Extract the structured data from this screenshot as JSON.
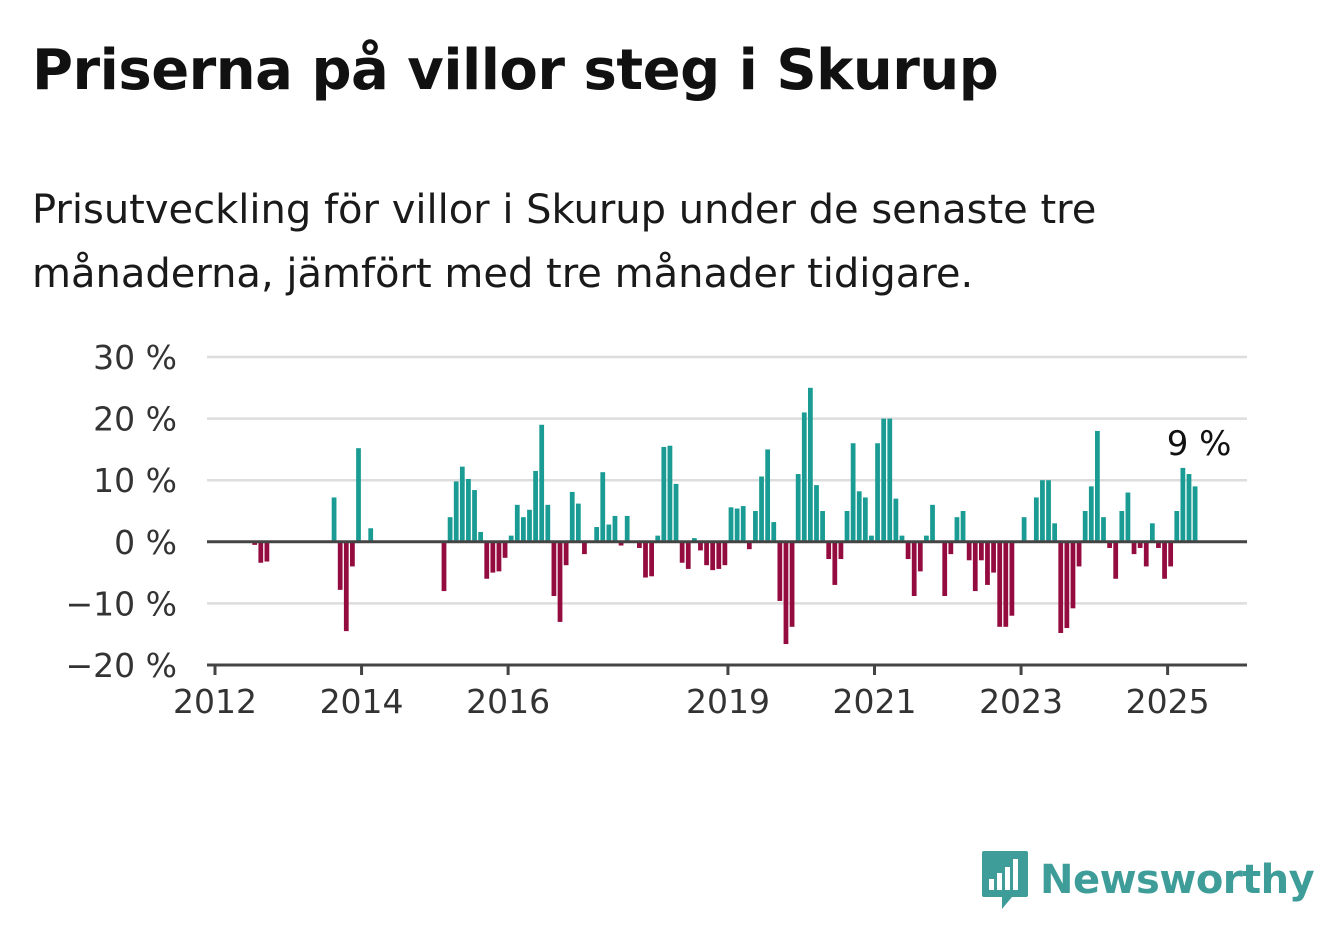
{
  "header": {
    "title": "Priserna på villor steg i Skurup",
    "subtitle": "Prisutveckling för villor i Skurup under de senaste tre månaderna, jämfört med tre månader tidigare."
  },
  "brand": {
    "name": "Newsworthy",
    "icon": "newsworthy-logo-icon"
  },
  "colors": {
    "positive": "#1a9c94",
    "negative": "#930b3f",
    "grid": "#dddddd",
    "axis": "#444444",
    "brand": "#3e9d98"
  },
  "chart_data": {
    "type": "bar",
    "title": "",
    "xlabel": "",
    "ylabel": "",
    "ylim": [
      -20,
      30
    ],
    "yticks": [
      {
        "value": 30,
        "label": "30 %"
      },
      {
        "value": 20,
        "label": "20 %"
      },
      {
        "value": 10,
        "label": "10 %"
      },
      {
        "value": 0,
        "label": "0 %"
      },
      {
        "value": -10,
        "label": "−10 %"
      },
      {
        "value": -20,
        "label": "−20 %"
      }
    ],
    "xticks": [
      {
        "value": "2012-01",
        "label": "2012"
      },
      {
        "value": "2014-01",
        "label": "2014"
      },
      {
        "value": "2016-01",
        "label": "2016"
      },
      {
        "value": "2019-01",
        "label": "2019"
      },
      {
        "value": "2021-01",
        "label": "2021"
      },
      {
        "value": "2023-01",
        "label": "2023"
      },
      {
        "value": "2025-01",
        "label": "2025"
      }
    ],
    "xlim": [
      "2012-01",
      "2026-02"
    ],
    "grid": true,
    "annotation": {
      "x": "2025-05",
      "y": 9,
      "label": "9 %"
    },
    "series": [
      {
        "values": [
          [
            "2012-07",
            -0.5
          ],
          [
            "2012-08",
            -3.4
          ],
          [
            "2012-09",
            -3.2
          ],
          [
            "2013-08",
            7.2
          ],
          [
            "2013-09",
            -7.8
          ],
          [
            "2013-10",
            -14.5
          ],
          [
            "2013-11",
            -4
          ],
          [
            "2013-12",
            15.2
          ],
          [
            "2014-02",
            2.2
          ],
          [
            "2015-02",
            -8
          ],
          [
            "2015-03",
            4
          ],
          [
            "2015-04",
            9.8
          ],
          [
            "2015-05",
            12.2
          ],
          [
            "2015-06",
            10.2
          ],
          [
            "2015-07",
            8.4
          ],
          [
            "2015-08",
            1.6
          ],
          [
            "2015-09",
            -6
          ],
          [
            "2015-10",
            -5
          ],
          [
            "2015-11",
            -4.8
          ],
          [
            "2015-12",
            -2.6
          ],
          [
            "2016-01",
            1
          ],
          [
            "2016-02",
            6
          ],
          [
            "2016-03",
            4
          ],
          [
            "2016-04",
            5.2
          ],
          [
            "2016-05",
            11.5
          ],
          [
            "2016-06",
            19
          ],
          [
            "2016-07",
            6
          ],
          [
            "2016-08",
            -8.8
          ],
          [
            "2016-09",
            -13
          ],
          [
            "2016-10",
            -3.8
          ],
          [
            "2016-11",
            8.1
          ],
          [
            "2016-12",
            6.2
          ],
          [
            "2017-01",
            -2
          ],
          [
            "2017-03",
            2.4
          ],
          [
            "2017-04",
            11.3
          ],
          [
            "2017-05",
            2.8
          ],
          [
            "2017-06",
            4.2
          ],
          [
            "2017-07",
            -0.6
          ],
          [
            "2017-08",
            4.2
          ],
          [
            "2017-10",
            -1
          ],
          [
            "2017-11",
            -5.8
          ],
          [
            "2017-12",
            -5.6
          ],
          [
            "2018-01",
            1
          ],
          [
            "2018-02",
            15.4
          ],
          [
            "2018-03",
            15.6
          ],
          [
            "2018-04",
            9.4
          ],
          [
            "2018-05",
            -3.4
          ],
          [
            "2018-06",
            -4.4
          ],
          [
            "2018-07",
            0.6
          ],
          [
            "2018-08",
            -1.4
          ],
          [
            "2018-09",
            -3.8
          ],
          [
            "2018-10",
            -4.6
          ],
          [
            "2018-11",
            -4.4
          ],
          [
            "2018-12",
            -3.8
          ],
          [
            "2019-01",
            5.6
          ],
          [
            "2019-02",
            5.4
          ],
          [
            "2019-03",
            5.8
          ],
          [
            "2019-04",
            -1.2
          ],
          [
            "2019-05",
            5
          ],
          [
            "2019-06",
            10.6
          ],
          [
            "2019-07",
            15
          ],
          [
            "2019-08",
            3.2
          ],
          [
            "2019-09",
            -9.6
          ],
          [
            "2019-10",
            -16.6
          ],
          [
            "2019-11",
            -13.8
          ],
          [
            "2019-12",
            11
          ],
          [
            "2020-01",
            21
          ],
          [
            "2020-02",
            25
          ],
          [
            "2020-03",
            9.2
          ],
          [
            "2020-04",
            5
          ],
          [
            "2020-05",
            -2.8
          ],
          [
            "2020-06",
            -7
          ],
          [
            "2020-07",
            -2.8
          ],
          [
            "2020-08",
            5
          ],
          [
            "2020-09",
            16
          ],
          [
            "2020-10",
            8.2
          ],
          [
            "2020-11",
            7.2
          ],
          [
            "2020-12",
            1
          ],
          [
            "2021-01",
            16
          ],
          [
            "2021-02",
            20
          ],
          [
            "2021-03",
            20
          ],
          [
            "2021-04",
            7
          ],
          [
            "2021-05",
            1
          ],
          [
            "2021-06",
            -2.8
          ],
          [
            "2021-07",
            -8.8
          ],
          [
            "2021-08",
            -4.8
          ],
          [
            "2021-09",
            1
          ],
          [
            "2021-10",
            6
          ],
          [
            "2021-12",
            -8.8
          ],
          [
            "2022-01",
            -2
          ],
          [
            "2022-02",
            4
          ],
          [
            "2022-03",
            5
          ],
          [
            "2022-04",
            -3
          ],
          [
            "2022-05",
            -8
          ],
          [
            "2022-06",
            -3
          ],
          [
            "2022-07",
            -7
          ],
          [
            "2022-08",
            -5
          ],
          [
            "2022-09",
            -13.8
          ],
          [
            "2022-10",
            -13.8
          ],
          [
            "2022-11",
            -12
          ],
          [
            "2023-01",
            4
          ],
          [
            "2023-03",
            7.2
          ],
          [
            "2023-04",
            10
          ],
          [
            "2023-05",
            10
          ],
          [
            "2023-06",
            3
          ],
          [
            "2023-07",
            -14.8
          ],
          [
            "2023-08",
            -14
          ],
          [
            "2023-09",
            -10.8
          ],
          [
            "2023-10",
            -4
          ],
          [
            "2023-11",
            5
          ],
          [
            "2023-12",
            9
          ],
          [
            "2024-01",
            18
          ],
          [
            "2024-02",
            4
          ],
          [
            "2024-03",
            -1
          ],
          [
            "2024-04",
            -6
          ],
          [
            "2024-05",
            5
          ],
          [
            "2024-06",
            8
          ],
          [
            "2024-07",
            -2
          ],
          [
            "2024-08",
            -1
          ],
          [
            "2024-09",
            -4
          ],
          [
            "2024-10",
            3
          ],
          [
            "2024-11",
            -1
          ],
          [
            "2024-12",
            -6
          ],
          [
            "2025-01",
            -4
          ],
          [
            "2025-02",
            5
          ],
          [
            "2025-03",
            12
          ],
          [
            "2025-04",
            11
          ],
          [
            "2025-05",
            9
          ]
        ]
      }
    ]
  }
}
